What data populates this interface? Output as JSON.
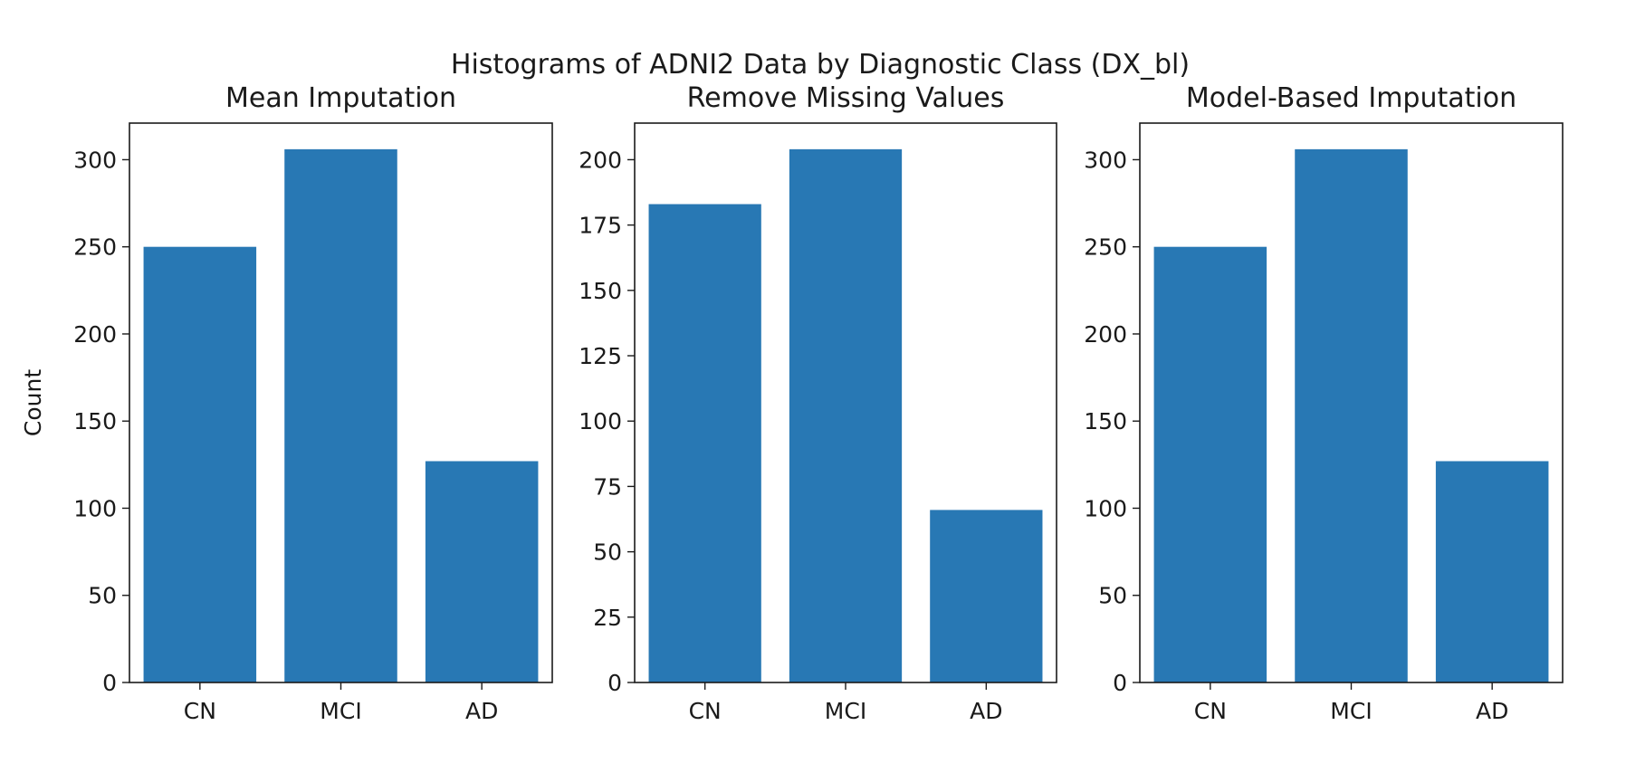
{
  "figure": {
    "suptitle": "Histograms of ADNI2 Data by Diagnostic Class (DX_bl)"
  },
  "colors": {
    "bar": "#2878b4",
    "axis": "#1a1a1a",
    "background": "#ffffff"
  },
  "chart_data": [
    {
      "type": "bar",
      "title": "Mean Imputation",
      "xlabel": "",
      "ylabel": "Count",
      "categories": [
        "CN",
        "MCI",
        "AD"
      ],
      "values": [
        250,
        306,
        127
      ],
      "ylim": [
        0,
        321
      ],
      "yticks": [
        0,
        50,
        100,
        150,
        200,
        250,
        300
      ],
      "grid": false
    },
    {
      "type": "bar",
      "title": "Remove Missing Values",
      "xlabel": "",
      "ylabel": "",
      "categories": [
        "CN",
        "MCI",
        "AD"
      ],
      "values": [
        183,
        204,
        66
      ],
      "ylim": [
        0,
        214
      ],
      "yticks": [
        0,
        25,
        50,
        75,
        100,
        125,
        150,
        175,
        200
      ],
      "grid": false
    },
    {
      "type": "bar",
      "title": "Model-Based Imputation",
      "xlabel": "",
      "ylabel": "",
      "categories": [
        "CN",
        "MCI",
        "AD"
      ],
      "values": [
        250,
        306,
        127
      ],
      "ylim": [
        0,
        321
      ],
      "yticks": [
        0,
        50,
        100,
        150,
        200,
        250,
        300
      ],
      "grid": false
    }
  ]
}
